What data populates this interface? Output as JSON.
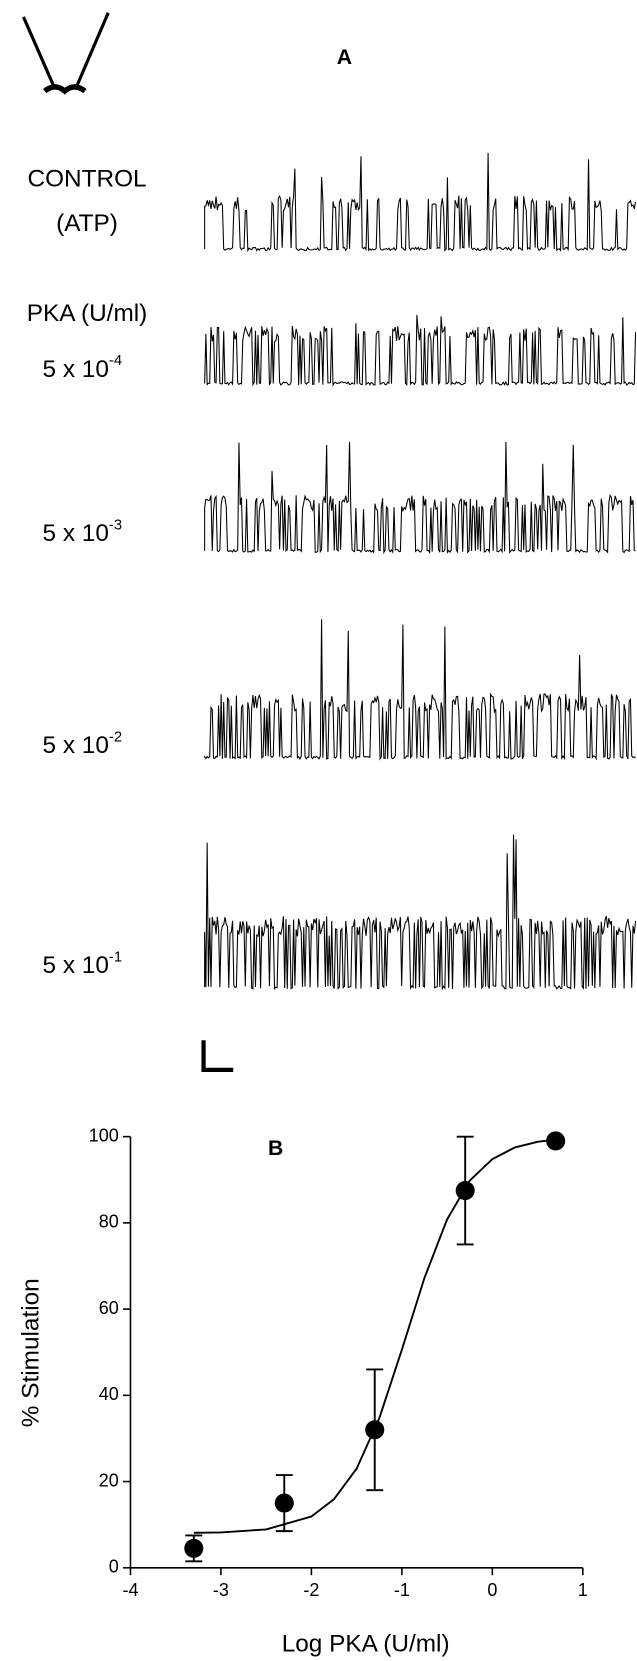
{
  "panel_a": {
    "title": "A",
    "control_label": "CONTROL",
    "control_sublabel": "(ATP)",
    "pka_label": "PKA (U/ml)",
    "concentrations": [
      {
        "base": "5 x 10",
        "exponent": "-4"
      },
      {
        "base": "5 x 10",
        "exponent": "-3"
      },
      {
        "base": "5 x 10",
        "exponent": "-2"
      },
      {
        "base": "5 x 10",
        "exponent": "-1"
      }
    ]
  },
  "chart_data": {
    "type": "scatter",
    "title": "B",
    "x_label": "Log PKA (U/ml)",
    "y_label": "% Stimulation",
    "color": "#000000",
    "x": [
      -3.3,
      -2.3,
      -1.3,
      -0.3,
      0.7
    ],
    "values": [
      4.5,
      15,
      32,
      87.5,
      99
    ],
    "errors": [
      3,
      6.5,
      14,
      12.5,
      null
    ],
    "fit": {
      "x": [
        -3.3,
        -3,
        -2.5,
        -2,
        -1.75,
        -1.5,
        -1.25,
        -1,
        -0.75,
        -0.5,
        -0.25,
        0,
        0.25,
        0.5,
        0.7
      ],
      "values": [
        8.1,
        8.2,
        8.9,
        11.9,
        15.9,
        23.0,
        34.7,
        50.6,
        67.3,
        80.8,
        89.8,
        94.8,
        97.5,
        98.8,
        99.3
      ]
    },
    "xlim": [
      -4,
      1
    ],
    "ylim": [
      0,
      100
    ],
    "xticks": [
      -4,
      -3,
      -2,
      -1,
      0,
      1
    ],
    "yticks": [
      0,
      20,
      40,
      60,
      80,
      100
    ]
  }
}
